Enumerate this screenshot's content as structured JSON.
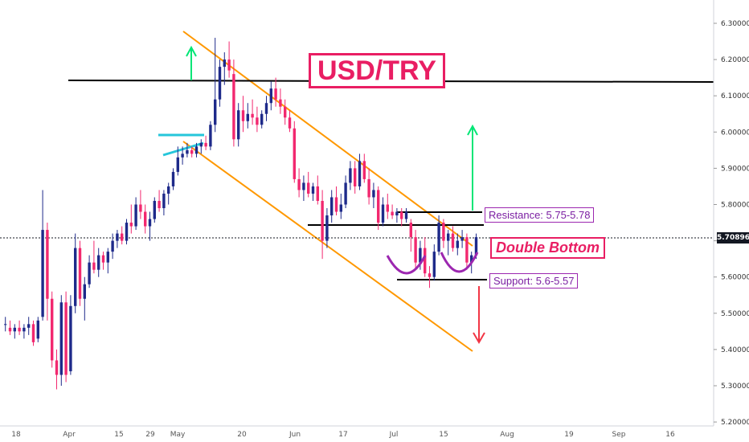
{
  "chart_data": {
    "type": "candlestick",
    "title": "USD/TRY",
    "price_axis": {
      "ticks": [
        "6.30000",
        "6.20000",
        "6.10000",
        "6.00000",
        "5.90000",
        "5.80000",
        "5.70000",
        "5.60000",
        "5.50000",
        "5.40000",
        "5.30000",
        "5.20000"
      ],
      "ylim": [
        5.19,
        6.34
      ],
      "current_price": "5.70896"
    },
    "date_axis": {
      "ticks": [
        "18",
        "Apr",
        "15",
        "29",
        "May",
        "20",
        "Jun",
        "17",
        "Jul",
        "15",
        "Aug",
        "19",
        "Sep",
        "16"
      ]
    },
    "annotations": {
      "resistance_label": "Resistance: 5.75-5.78",
      "support_label": "Support: 5.6-5.57",
      "pattern_label": "Double Bottom"
    },
    "candles": [
      [
        5.47,
        5.49,
        5.45,
        5.47
      ],
      [
        5.46,
        5.48,
        5.44,
        5.45
      ],
      [
        5.45,
        5.47,
        5.43,
        5.46
      ],
      [
        5.46,
        5.48,
        5.44,
        5.45
      ],
      [
        5.45,
        5.47,
        5.43,
        5.46
      ],
      [
        5.46,
        5.49,
        5.44,
        5.47
      ],
      [
        5.47,
        5.48,
        5.41,
        5.42
      ],
      [
        5.43,
        5.49,
        5.42,
        5.48
      ],
      [
        5.49,
        5.84,
        5.48,
        5.73
      ],
      [
        5.73,
        5.75,
        5.48,
        5.54
      ],
      [
        5.54,
        5.56,
        5.35,
        5.37
      ],
      [
        5.37,
        5.4,
        5.29,
        5.33
      ],
      [
        5.33,
        5.55,
        5.3,
        5.53
      ],
      [
        5.53,
        5.56,
        5.31,
        5.33
      ],
      [
        5.34,
        5.55,
        5.33,
        5.52
      ],
      [
        5.52,
        5.72,
        5.5,
        5.68
      ],
      [
        5.68,
        5.7,
        5.52,
        5.54
      ],
      [
        5.54,
        5.6,
        5.48,
        5.58
      ],
      [
        5.58,
        5.66,
        5.57,
        5.64
      ],
      [
        5.64,
        5.7,
        5.61,
        5.62
      ],
      [
        5.62,
        5.68,
        5.6,
        5.66
      ],
      [
        5.66,
        5.67,
        5.62,
        5.64
      ],
      [
        5.64,
        5.68,
        5.61,
        5.67
      ],
      [
        5.67,
        5.72,
        5.65,
        5.7
      ],
      [
        5.7,
        5.73,
        5.68,
        5.72
      ],
      [
        5.72,
        5.74,
        5.69,
        5.7
      ],
      [
        5.7,
        5.76,
        5.69,
        5.75
      ],
      [
        5.75,
        5.8,
        5.72,
        5.74
      ],
      [
        5.74,
        5.82,
        5.73,
        5.8
      ],
      [
        5.8,
        5.84,
        5.76,
        5.78
      ],
      [
        5.78,
        5.8,
        5.72,
        5.74
      ],
      [
        5.74,
        5.78,
        5.7,
        5.76
      ],
      [
        5.76,
        5.82,
        5.75,
        5.81
      ],
      [
        5.81,
        5.84,
        5.78,
        5.79
      ],
      [
        5.79,
        5.84,
        5.77,
        5.83
      ],
      [
        5.83,
        5.86,
        5.8,
        5.85
      ],
      [
        5.85,
        5.9,
        5.84,
        5.89
      ],
      [
        5.89,
        5.96,
        5.88,
        5.93
      ],
      [
        5.93,
        5.96,
        5.91,
        5.94
      ],
      [
        5.94,
        5.97,
        5.93,
        5.95
      ],
      [
        5.95,
        5.96,
        5.93,
        5.94
      ],
      [
        5.94,
        5.97,
        5.93,
        5.96
      ],
      [
        5.96,
        5.98,
        5.94,
        5.97
      ],
      [
        5.97,
        5.99,
        5.95,
        5.96
      ],
      [
        5.96,
        6.03,
        5.95,
        6.02
      ],
      [
        6.02,
        6.26,
        6.0,
        6.09
      ],
      [
        6.09,
        6.2,
        6.07,
        6.18
      ],
      [
        6.18,
        6.22,
        6.13,
        6.2
      ],
      [
        6.2,
        6.25,
        6.15,
        6.17
      ],
      [
        6.16,
        6.2,
        5.96,
        5.98
      ],
      [
        5.98,
        6.08,
        5.96,
        6.06
      ],
      [
        6.06,
        6.1,
        6.0,
        6.03
      ],
      [
        6.03,
        6.08,
        6.01,
        6.05
      ],
      [
        6.05,
        6.09,
        6.02,
        6.04
      ],
      [
        6.04,
        6.07,
        6.0,
        6.02
      ],
      [
        6.02,
        6.06,
        6.01,
        6.05
      ],
      [
        6.05,
        6.1,
        6.03,
        6.08
      ],
      [
        6.08,
        6.14,
        6.06,
        6.12
      ],
      [
        6.12,
        6.15,
        6.07,
        6.09
      ],
      [
        6.09,
        6.12,
        6.05,
        6.07
      ],
      [
        6.07,
        6.09,
        6.02,
        6.04
      ],
      [
        6.04,
        6.06,
        6.0,
        6.01
      ],
      [
        6.01,
        6.03,
        5.86,
        5.87
      ],
      [
        5.87,
        5.9,
        5.82,
        5.84
      ],
      [
        5.84,
        5.88,
        5.81,
        5.86
      ],
      [
        5.86,
        5.89,
        5.82,
        5.83
      ],
      [
        5.83,
        5.86,
        5.81,
        5.85
      ],
      [
        5.85,
        5.88,
        5.8,
        5.81
      ],
      [
        5.81,
        5.84,
        5.65,
        5.7
      ],
      [
        5.7,
        5.79,
        5.68,
        5.77
      ],
      [
        5.77,
        5.84,
        5.75,
        5.82
      ],
      [
        5.82,
        5.85,
        5.77,
        5.78
      ],
      [
        5.78,
        5.83,
        5.76,
        5.8
      ],
      [
        5.8,
        5.88,
        5.79,
        5.86
      ],
      [
        5.86,
        5.92,
        5.84,
        5.9
      ],
      [
        5.9,
        5.92,
        5.83,
        5.85
      ],
      [
        5.85,
        5.94,
        5.84,
        5.92
      ],
      [
        5.92,
        5.94,
        5.86,
        5.87
      ],
      [
        5.87,
        5.9,
        5.8,
        5.82
      ],
      [
        5.82,
        5.86,
        5.79,
        5.84
      ],
      [
        5.84,
        5.85,
        5.73,
        5.75
      ],
      [
        5.75,
        5.82,
        5.74,
        5.8
      ],
      [
        5.8,
        5.83,
        5.76,
        5.78
      ],
      [
        5.78,
        5.8,
        5.76,
        5.77
      ],
      [
        5.77,
        5.79,
        5.75,
        5.78
      ],
      [
        5.78,
        5.79,
        5.74,
        5.76
      ],
      [
        5.76,
        5.79,
        5.75,
        5.78
      ],
      [
        5.75,
        5.76,
        5.67,
        5.71
      ],
      [
        5.71,
        5.73,
        5.62,
        5.64
      ],
      [
        5.64,
        5.7,
        5.62,
        5.68
      ],
      [
        5.68,
        5.71,
        5.6,
        5.61
      ],
      [
        5.61,
        5.63,
        5.57,
        5.6
      ],
      [
        5.6,
        5.69,
        5.59,
        5.67
      ],
      [
        5.67,
        5.77,
        5.66,
        5.75
      ],
      [
        5.75,
        5.76,
        5.68,
        5.7
      ],
      [
        5.7,
        5.73,
        5.66,
        5.72
      ],
      [
        5.72,
        5.74,
        5.67,
        5.68
      ],
      [
        5.68,
        5.72,
        5.66,
        5.7
      ],
      [
        5.7,
        5.73,
        5.68,
        5.71
      ],
      [
        5.71,
        5.72,
        5.62,
        5.64
      ],
      [
        5.64,
        5.67,
        5.61,
        5.66
      ],
      [
        5.66,
        5.72,
        5.65,
        5.71
      ]
    ]
  }
}
